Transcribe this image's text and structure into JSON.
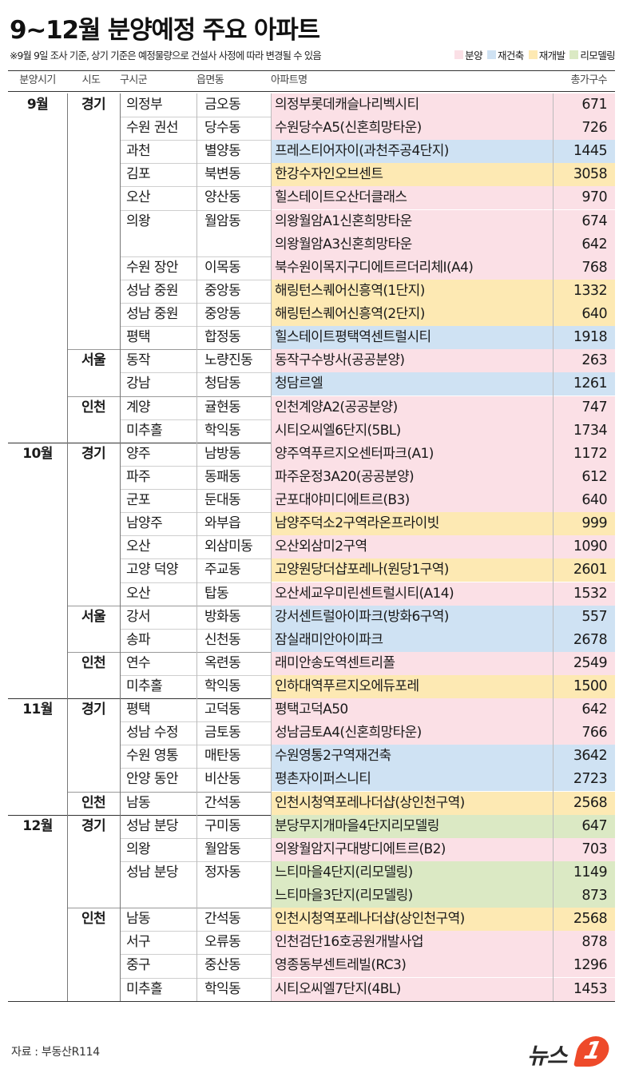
{
  "title": "9~12월 분양예정 주요 아파트",
  "note": "※9월 9일 조사 기준, 상기 기준은 예정물량으로 건설사 사정에 따라 변경될 수 있음",
  "legend": [
    {
      "label": "분양",
      "color": "#fbe0e6"
    },
    {
      "label": "재건축",
      "color": "#cfe2f3"
    },
    {
      "label": "재개발",
      "color": "#fde9b3"
    },
    {
      "label": "리모델링",
      "color": "#dbe9c4"
    }
  ],
  "headers": {
    "period": "분양시기",
    "sido": "시도",
    "gugun": "구시군",
    "dong": "읍면동",
    "apt": "아파트명",
    "total": "총가구수"
  },
  "months": [
    {
      "label": "9월",
      "groups": [
        {
          "sido": "경기",
          "rows": [
            {
              "gugun": "의정부",
              "dong": "금오동",
              "apt": "의정부롯데캐슬나리벡시티",
              "total": "671",
              "type": 0
            },
            {
              "gugun": "수원 권선",
              "dong": "당수동",
              "apt": "수원당수A5(신혼희망타운)",
              "total": "726",
              "type": 0
            },
            {
              "gugun": "과천",
              "dong": "별양동",
              "apt": "프레스티어자이(과천주공4단지)",
              "total": "1445",
              "type": 1
            },
            {
              "gugun": "김포",
              "dong": "북변동",
              "apt": "한강수자인오브센트",
              "total": "3058",
              "type": 2
            },
            {
              "gugun": "오산",
              "dong": "양산동",
              "apt": "힐스테이트오산더클래스",
              "total": "970",
              "type": 0
            },
            {
              "gugun": "의왕",
              "dong": "월암동",
              "apt": "의왕월암A1신혼희망타운",
              "total": "674",
              "type": 0
            },
            {
              "gugun": "",
              "dong": "",
              "apt": "의왕월암A3신혼희망타운",
              "total": "642",
              "type": 0
            },
            {
              "gugun": "수원 장안",
              "dong": "이목동",
              "apt": "북수원이목지구디에트르더리체Ⅰ(A4)",
              "total": "768",
              "type": 0
            },
            {
              "gugun": "성남 중원",
              "dong": "중앙동",
              "apt": "해링턴스퀘어신흥역(1단지)",
              "total": "1332",
              "type": 2
            },
            {
              "gugun": "성남 중원",
              "dong": "중앙동",
              "apt": "해링턴스퀘어신흥역(2단지)",
              "total": "640",
              "type": 2
            },
            {
              "gugun": "평택",
              "dong": "합정동",
              "apt": "힐스테이트평택역센트럴시티",
              "total": "1918",
              "type": 1
            }
          ]
        },
        {
          "sido": "서울",
          "rows": [
            {
              "gugun": "동작",
              "dong": "노량진동",
              "apt": "동작구수방사(공공분양)",
              "total": "263",
              "type": 0
            },
            {
              "gugun": "강남",
              "dong": "청담동",
              "apt": "청담르엘",
              "total": "1261",
              "type": 1
            }
          ]
        },
        {
          "sido": "인천",
          "rows": [
            {
              "gugun": "계양",
              "dong": "귤현동",
              "apt": "인천계양A2(공공분양)",
              "total": "747",
              "type": 0
            },
            {
              "gugun": "미추홀",
              "dong": "학익동",
              "apt": "시티오씨엘6단지(5BL)",
              "total": "1734",
              "type": 0
            }
          ]
        }
      ]
    },
    {
      "label": "10월",
      "groups": [
        {
          "sido": "경기",
          "rows": [
            {
              "gugun": "양주",
              "dong": "남방동",
              "apt": "양주역푸르지오센터파크(A1)",
              "total": "1172",
              "type": 0
            },
            {
              "gugun": "파주",
              "dong": "동패동",
              "apt": "파주운정3A20(공공분양)",
              "total": "612",
              "type": 0
            },
            {
              "gugun": "군포",
              "dong": "둔대동",
              "apt": "군포대야미디에트르(B3)",
              "total": "640",
              "type": 0
            },
            {
              "gugun": "남양주",
              "dong": "와부읍",
              "apt": "남양주덕소2구역라온프라이빗",
              "total": "999",
              "type": 2
            },
            {
              "gugun": "오산",
              "dong": "외삼미동",
              "apt": "오산외삼미2구역",
              "total": "1090",
              "type": 0
            },
            {
              "gugun": "고양 덕양",
              "dong": "주교동",
              "apt": "고양원당더샵포레나(원당1구역)",
              "total": "2601",
              "type": 2
            },
            {
              "gugun": "오산",
              "dong": "탑동",
              "apt": "오산세교우미린센트럴시티(A14)",
              "total": "1532",
              "type": 0
            }
          ]
        },
        {
          "sido": "서울",
          "rows": [
            {
              "gugun": "강서",
              "dong": "방화동",
              "apt": "강서센트럴아이파크(방화6구역)",
              "total": "557",
              "type": 1
            },
            {
              "gugun": "송파",
              "dong": "신천동",
              "apt": "잠실래미안아이파크",
              "total": "2678",
              "type": 1
            }
          ]
        },
        {
          "sido": "인천",
          "rows": [
            {
              "gugun": "연수",
              "dong": "옥련동",
              "apt": "래미안송도역센트리폴",
              "total": "2549",
              "type": 0
            },
            {
              "gugun": "미추홀",
              "dong": "학익동",
              "apt": "인하대역푸르지오에듀포레",
              "total": "1500",
              "type": 2
            }
          ]
        }
      ]
    },
    {
      "label": "11월",
      "groups": [
        {
          "sido": "경기",
          "rows": [
            {
              "gugun": "평택",
              "dong": "고덕동",
              "apt": "평택고덕A50",
              "total": "642",
              "type": 0
            },
            {
              "gugun": "성남 수정",
              "dong": "금토동",
              "apt": "성남금토A4(신혼희망타운)",
              "total": "766",
              "type": 0
            },
            {
              "gugun": "수원 영통",
              "dong": "매탄동",
              "apt": "수원영통2구역재건축",
              "total": "3642",
              "type": 1
            },
            {
              "gugun": "안양 동안",
              "dong": "비산동",
              "apt": "평촌자이퍼스니티",
              "total": "2723",
              "type": 1
            }
          ]
        },
        {
          "sido": "인천",
          "rows": [
            {
              "gugun": "남동",
              "dong": "간석동",
              "apt": "인천시청역포레나더샵(상인천구역)",
              "total": "2568",
              "type": 2
            }
          ]
        }
      ]
    },
    {
      "label": "12월",
      "groups": [
        {
          "sido": "경기",
          "rows": [
            {
              "gugun": "성남 분당",
              "dong": "구미동",
              "apt": "분당무지개마을4단지리모델링",
              "total": "647",
              "type": 3
            },
            {
              "gugun": "의왕",
              "dong": "월암동",
              "apt": "의왕월암지구대방디에트르(B2)",
              "total": "703",
              "type": 0
            },
            {
              "gugun": "성남 분당",
              "dong": "정자동",
              "apt": "느티마을4단지(리모델링)",
              "total": "1149",
              "type": 3
            },
            {
              "gugun": "",
              "dong": "",
              "apt": "느티마을3단지(리모델링)",
              "total": "873",
              "type": 3
            }
          ]
        },
        {
          "sido": "인천",
          "rows": [
            {
              "gugun": "남동",
              "dong": "간석동",
              "apt": "인천시청역포레나더샵(상인천구역)",
              "total": "2568",
              "type": 2
            },
            {
              "gugun": "서구",
              "dong": "오류동",
              "apt": "인천검단16호공원개발사업",
              "total": "878",
              "type": 0
            },
            {
              "gugun": "중구",
              "dong": "중산동",
              "apt": "영종동부센트레빌(RC3)",
              "total": "1296",
              "type": 0
            },
            {
              "gugun": "미추홀",
              "dong": "학익동",
              "apt": "시티오씨엘7단지(4BL)",
              "total": "1453",
              "type": 0
            }
          ]
        }
      ]
    }
  ],
  "source": "자료 : 부동산R114",
  "logo": {
    "text": "뉴스",
    "mark": "1"
  }
}
